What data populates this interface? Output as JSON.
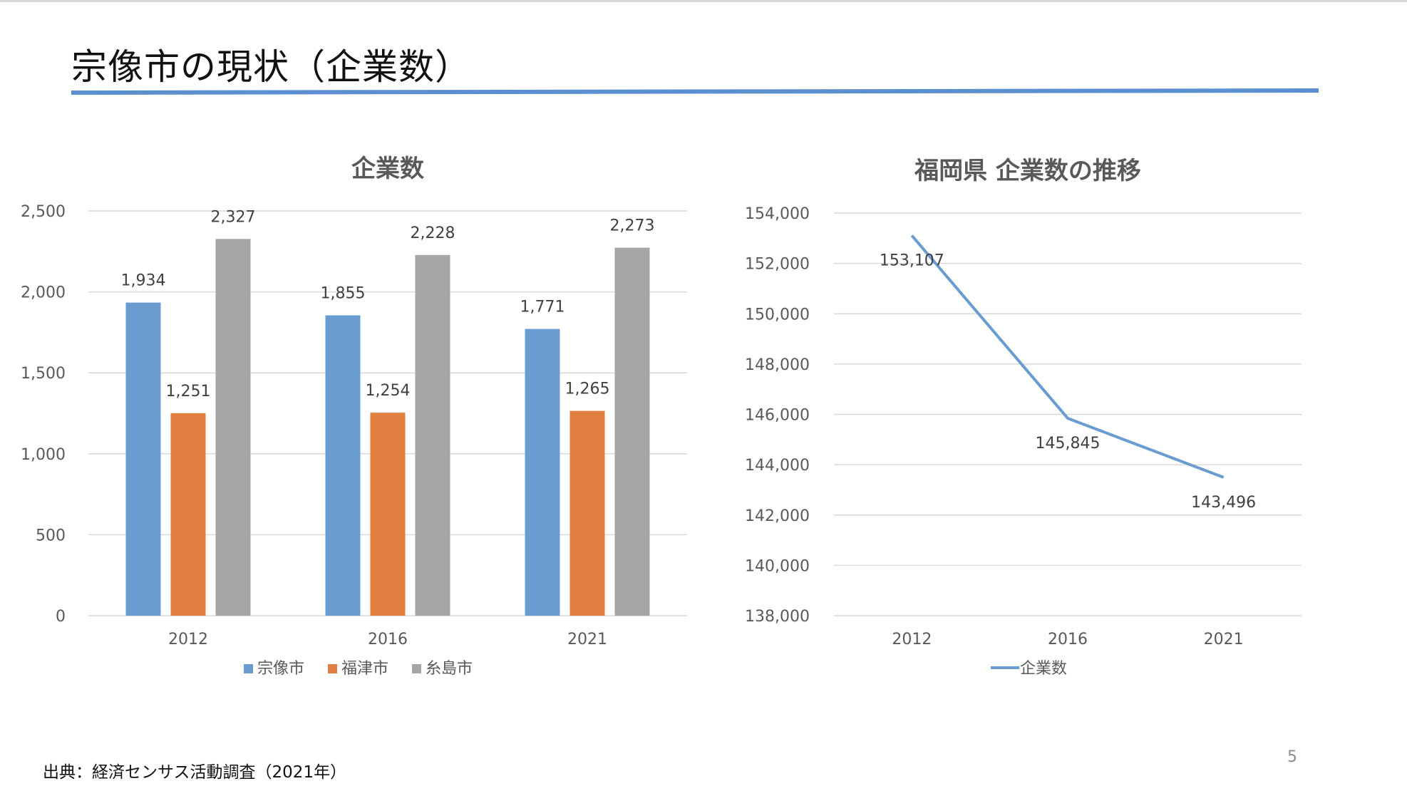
{
  "slide": {
    "title": "宗像市の現状（企業数）",
    "source": "出典：経済センサス活動調査（2021年）",
    "page_number": "5",
    "accent_color": "#5b8fd0"
  },
  "chart_data": [
    {
      "type": "bar",
      "title": "企業数",
      "categories": [
        "2012",
        "2016",
        "2021"
      ],
      "series": [
        {
          "name": "宗像市",
          "color": "#6a9bd1",
          "values": [
            1934,
            1855,
            1771
          ],
          "labels": [
            "1,934",
            "1,855",
            "1,771"
          ]
        },
        {
          "name": "福津市",
          "color": "#e07f3f",
          "values": [
            1251,
            1254,
            1265
          ],
          "labels": [
            "1,251",
            "1,254",
            "1,265"
          ]
        },
        {
          "name": "糸島市",
          "color": "#a6a6a6",
          "values": [
            2327,
            2228,
            2273
          ],
          "labels": [
            "2,327",
            "2,228",
            "2,273"
          ]
        }
      ],
      "ylim": [
        0,
        2500
      ],
      "yticks": [
        0,
        500,
        1000,
        1500,
        2000,
        2500
      ],
      "ytick_labels": [
        "0",
        "500",
        "1,000",
        "1,500",
        "2,000",
        "2,500"
      ],
      "grid": true,
      "legend": "bottom"
    },
    {
      "type": "line",
      "title": "福岡県 企業数の推移",
      "categories": [
        "2012",
        "2016",
        "2021"
      ],
      "series": [
        {
          "name": "企業数",
          "color": "#6a9bd1",
          "values": [
            153107,
            145845,
            143496
          ],
          "labels": [
            "153,107",
            "145,845",
            "143,496"
          ]
        }
      ],
      "ylim": [
        138000,
        154000
      ],
      "yticks": [
        138000,
        140000,
        142000,
        144000,
        146000,
        148000,
        150000,
        152000,
        154000
      ],
      "ytick_labels": [
        "138,000",
        "140,000",
        "142,000",
        "144,000",
        "146,000",
        "148,000",
        "150,000",
        "152,000",
        "154,000"
      ],
      "grid": true,
      "legend": "bottom"
    }
  ]
}
